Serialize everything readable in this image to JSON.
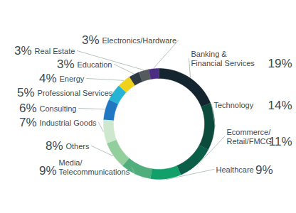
{
  "chart_data": {
    "type": "pie",
    "categories": [
      "Banking &\nFinancial Services",
      "Technology",
      "Ecommerce/\nRetail/FMCG",
      "Healthcare",
      "Media/\nTelecommunications",
      "Others",
      "Industrial Goods",
      "Consulting",
      "Professional Services",
      "Energy",
      "Education",
      "Real Estate",
      "Electronics/Hardware"
    ],
    "values": [
      19,
      14,
      11,
      9,
      9,
      8,
      7,
      6,
      5,
      4,
      3,
      3,
      3
    ],
    "value_labels": [
      "19%",
      "14%",
      "11%",
      "9%",
      "9%",
      "8%",
      "7%",
      "6%",
      "5%",
      "4%",
      "3%",
      "3%",
      "3%"
    ],
    "colors": [
      "#14252f",
      "#0c4a3c",
      "#0b5e48",
      "#12a06a",
      "#4fae7c",
      "#93cf9c",
      "#cde8cf",
      "#1f78c1",
      "#27b4d4",
      "#f0d11c",
      "#2f3b44",
      "#555a5e",
      "#4b2e83"
    ],
    "data_labels": true
  }
}
